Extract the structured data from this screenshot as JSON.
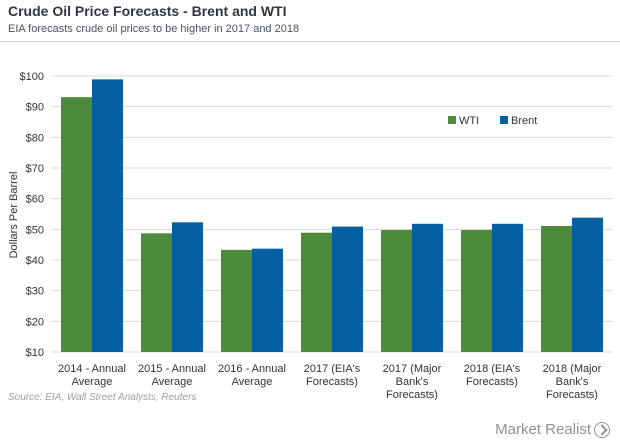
{
  "header": {
    "title": "Crude Oil Price Forecasts - Brent and WTI",
    "subtitle": "EIA forecasts crude oil prices to be higher in 2017 and 2018"
  },
  "footer": {
    "source": "Source: EIA, Wall Street Analysts, Reuters",
    "brand": "Market Realist"
  },
  "colors": {
    "wti": "#4b8b3b",
    "brent": "#04609e"
  },
  "chart_data": {
    "type": "bar",
    "title": "Crude Oil Price Forecasts - Brent and WTI",
    "subtitle": "EIA forecasts crude oil prices to be higher in 2017 and 2018",
    "xlabel": "",
    "ylabel": "Dollars Per Barrel",
    "ylim": [
      10,
      100
    ],
    "yticks": [
      10,
      20,
      30,
      40,
      50,
      60,
      70,
      80,
      90,
      100
    ],
    "ytick_labels": [
      "$10",
      "$20",
      "$30",
      "$40",
      "$50",
      "$60",
      "$70",
      "$80",
      "$90",
      "$100"
    ],
    "grid": true,
    "legend": "top-right",
    "categories": [
      [
        "2014 - Annual",
        "Average"
      ],
      [
        "2015 - Annual",
        "Average"
      ],
      [
        "2016 - Annual",
        "Average"
      ],
      [
        "2017 (EIA's",
        "Forecasts)"
      ],
      [
        "2017 (Major",
        "Bank's",
        "Forecasts)"
      ],
      [
        "2018 (EIA's",
        "Forecasts)"
      ],
      [
        "2018 (Major",
        "Bank's",
        "Forecasts)"
      ]
    ],
    "series": [
      {
        "name": "WTI",
        "values": [
          93.1,
          48.7,
          43.3,
          48.9,
          49.8,
          49.8,
          51.1
        ]
      },
      {
        "name": "Brent",
        "values": [
          98.9,
          52.3,
          43.7,
          50.9,
          51.8,
          51.8,
          53.8
        ]
      }
    ]
  }
}
